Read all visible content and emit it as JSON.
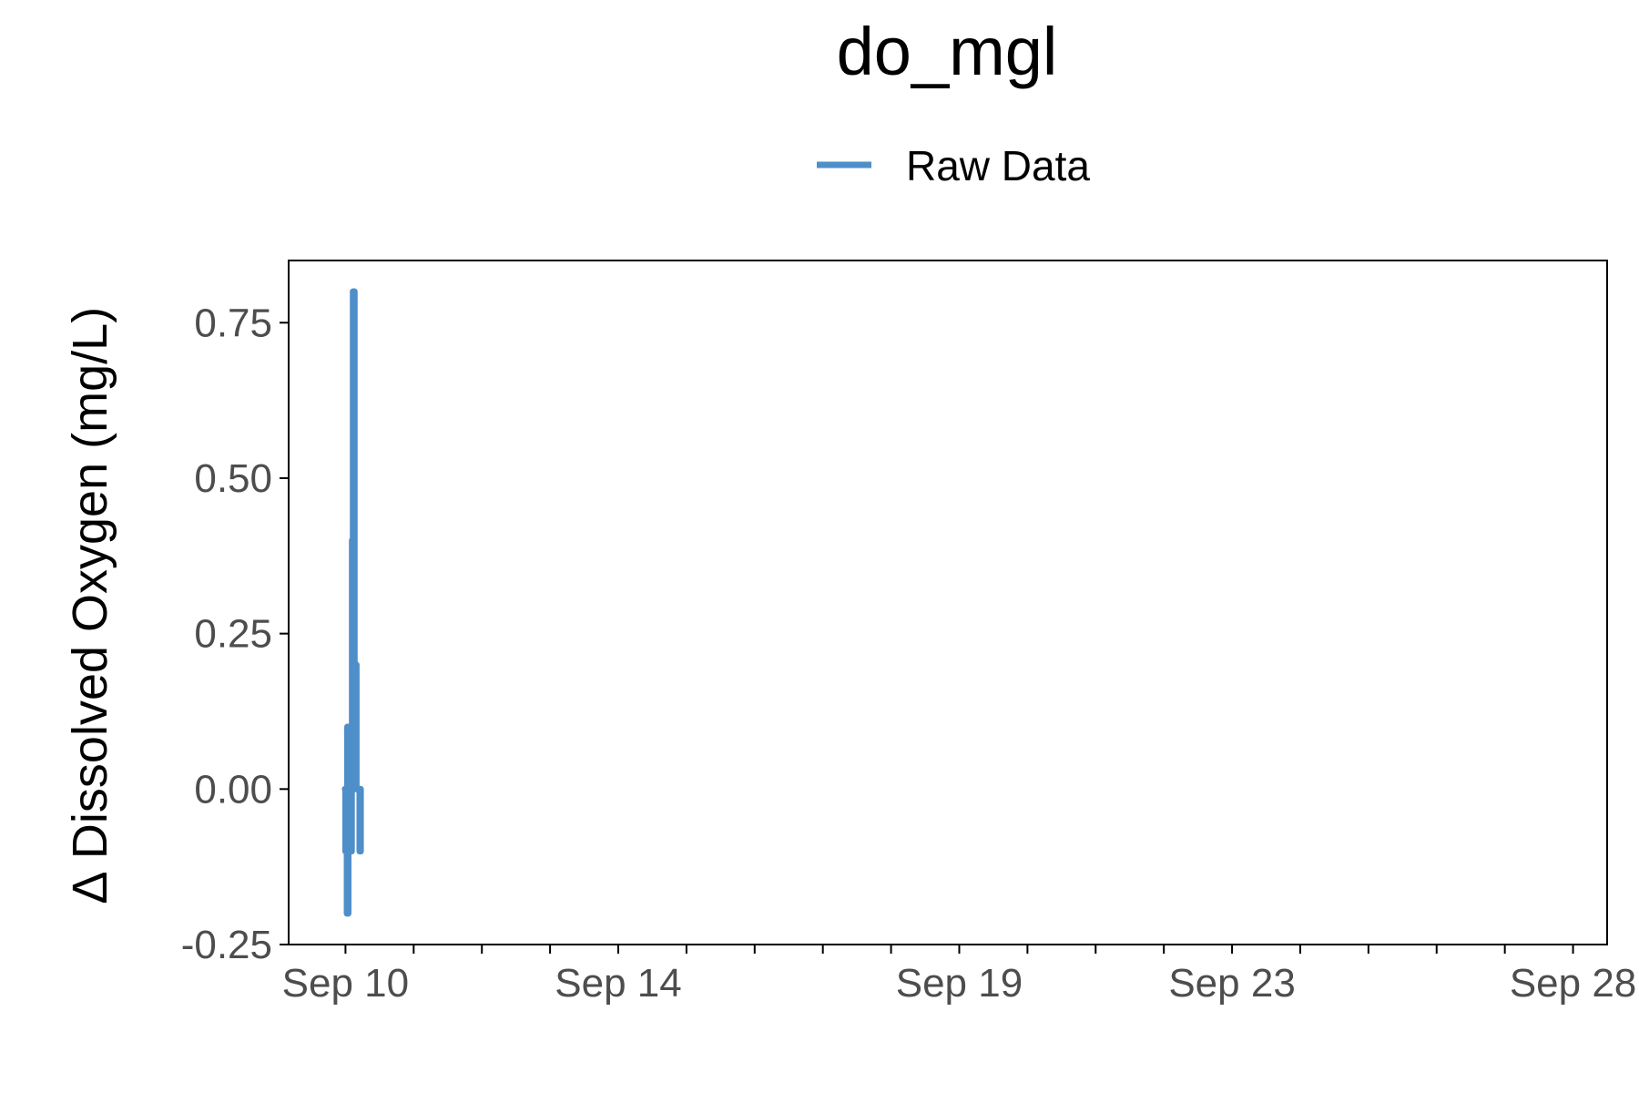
{
  "chart_data": {
    "type": "line",
    "title": "do_mgl",
    "xlabel": "",
    "ylabel": "∆ Dissolved Oxygen (mg/L)",
    "legend": {
      "position": "top",
      "entries": [
        "Raw Data"
      ]
    },
    "grid": false,
    "colors": {
      "series": "#4f8fc9",
      "axis": "#000000",
      "tick_label": "#4d4d4d"
    },
    "xlim": [
      "2023-09-09T04:00",
      "2023-09-28T12:00"
    ],
    "ylim": [
      -0.25,
      0.85
    ],
    "x_ticks": [
      {
        "value": "2023-09-10",
        "label": "Sep 10"
      },
      {
        "value": "2023-09-14",
        "label": "Sep 14"
      },
      {
        "value": "2023-09-19",
        "label": "Sep 19"
      },
      {
        "value": "2023-09-23",
        "label": "Sep 23"
      },
      {
        "value": "2023-09-28",
        "label": "Sep 28"
      }
    ],
    "x_minor_ticks": [
      "2023-09-11",
      "2023-09-12",
      "2023-09-13",
      "2023-09-15",
      "2023-09-16",
      "2023-09-17",
      "2023-09-18",
      "2023-09-20",
      "2023-09-21",
      "2023-09-22",
      "2023-09-24",
      "2023-09-25",
      "2023-09-26",
      "2023-09-27"
    ],
    "y_ticks": [
      {
        "value": 0.75,
        "label": "0.75"
      },
      {
        "value": 0.5,
        "label": "0.50"
      },
      {
        "value": 0.25,
        "label": "0.25"
      },
      {
        "value": 0.0,
        "label": "0.00"
      },
      {
        "value": -0.25,
        "label": "-0.25"
      }
    ],
    "series": [
      {
        "name": "Raw Data",
        "points": [
          {
            "x": "2023-09-09T23:50",
            "y": 0.0
          },
          {
            "x": "2023-09-10T00:00",
            "y": -0.1
          },
          {
            "x": "2023-09-10T00:10",
            "y": 0.0
          },
          {
            "x": "2023-09-10T00:20",
            "y": -0.1
          },
          {
            "x": "2023-09-10T00:30",
            "y": -0.2
          },
          {
            "x": "2023-09-10T00:40",
            "y": 0.1
          },
          {
            "x": "2023-09-10T00:50",
            "y": -0.2
          },
          {
            "x": "2023-09-10T01:00",
            "y": 0.0
          },
          {
            "x": "2023-09-10T01:10",
            "y": 0.1
          },
          {
            "x": "2023-09-10T01:20",
            "y": -0.1
          },
          {
            "x": "2023-09-10T01:30",
            "y": 0.0
          },
          {
            "x": "2023-09-10T01:40",
            "y": 0.1
          },
          {
            "x": "2023-09-10T01:50",
            "y": 0.0
          },
          {
            "x": "2023-09-10T02:00",
            "y": -0.1
          },
          {
            "x": "2023-09-10T02:10",
            "y": 0.0
          },
          {
            "x": "2023-09-10T02:20",
            "y": 0.4
          },
          {
            "x": "2023-09-10T02:30",
            "y": 0.2
          },
          {
            "x": "2023-09-10T02:40",
            "y": 0.8
          },
          {
            "x": "2023-09-10T02:50",
            "y": 0.0
          },
          {
            "x": "2023-09-10T03:00",
            "y": 0.8
          },
          {
            "x": "2023-09-10T03:10",
            "y": 0.2
          },
          {
            "x": "2023-09-10T03:20",
            "y": 0.0
          },
          {
            "x": "2023-09-10T03:30",
            "y": 0.0
          },
          {
            "x": "2023-09-10T03:40",
            "y": 0.2
          },
          {
            "x": "2023-09-10T03:50",
            "y": 0.0
          },
          {
            "x": "2023-09-10T04:00",
            "y": 0.0
          },
          {
            "x": "2023-09-10T04:20",
            "y": 0.0
          },
          {
            "x": "2023-09-10T04:40",
            "y": 0.0
          },
          {
            "x": "2023-09-10T05:00",
            "y": -0.1
          },
          {
            "x": "2023-09-10T05:10",
            "y": 0.0
          },
          {
            "x": "2023-09-10T05:20",
            "y": -0.1
          }
        ]
      }
    ]
  }
}
